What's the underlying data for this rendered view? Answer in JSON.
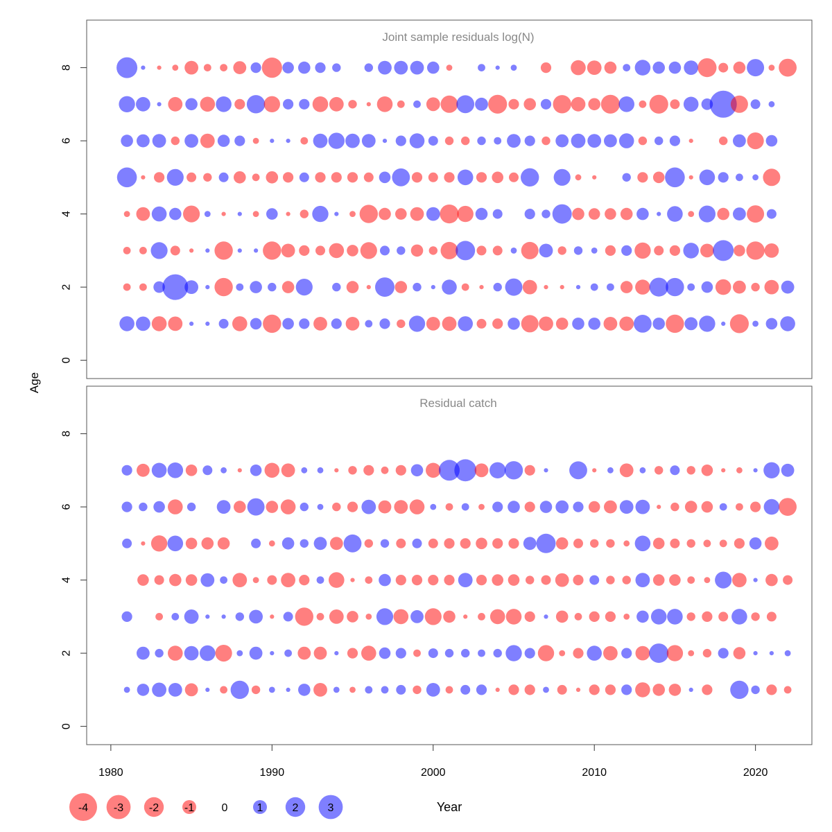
{
  "colors": {
    "negative": "#ff0000",
    "positive": "#0000ff",
    "bubble_opacity": 0.5,
    "frame": "#555555",
    "title_gray": "#888888"
  },
  "ylabel": "Age",
  "xlabel": "Year",
  "xticks": [
    1980,
    1990,
    2000,
    2010,
    2020
  ],
  "yticks": [
    0,
    2,
    4,
    6,
    8
  ],
  "legend": [
    {
      "value": -4,
      "label": "-4"
    },
    {
      "value": -3,
      "label": "-3"
    },
    {
      "value": -2,
      "label": "-2"
    },
    {
      "value": -1,
      "label": "-1"
    },
    {
      "value": 0,
      "label": "0"
    },
    {
      "value": 1,
      "label": "1"
    },
    {
      "value": 2,
      "label": "2"
    },
    {
      "value": 3,
      "label": "3"
    }
  ],
  "chart_data": [
    {
      "type": "scatter",
      "title": "Joint sample residuals log(N)",
      "xlabel": "Year",
      "ylabel": "Age",
      "xlim": [
        1978.5,
        2023.5
      ],
      "ylim": [
        -0.5,
        9.3
      ],
      "marker_scale": "bubble area proportional to |residual|; red = negative, blue = positive",
      "years": [
        1981,
        1982,
        1983,
        1984,
        1985,
        1986,
        1987,
        1988,
        1989,
        1990,
        1991,
        1992,
        1993,
        1994,
        1995,
        1996,
        1997,
        1998,
        1999,
        2000,
        2001,
        2002,
        2003,
        2004,
        2005,
        2006,
        2007,
        2008,
        2009,
        2010,
        2011,
        2012,
        2013,
        2014,
        2015,
        2016,
        2017,
        2018,
        2019,
        2020,
        2021,
        2022
      ],
      "ages": [
        1,
        2,
        3,
        4,
        5,
        6,
        7,
        8
      ],
      "residuals": {
        "1": [
          1.2,
          1.1,
          -1.2,
          -1.1,
          0.1,
          0.1,
          0.5,
          -1.2,
          0.7,
          -1.8,
          0.7,
          0.6,
          -1.0,
          0.6,
          -1.0,
          0.3,
          0.6,
          -0.4,
          1.4,
          -1.0,
          -1.1,
          1.2,
          -0.5,
          -0.6,
          0.8,
          -1.6,
          -1.1,
          -0.8,
          0.8,
          0.8,
          -1.0,
          -1.1,
          1.7,
          0.8,
          -1.8,
          0.9,
          1.4,
          0.1,
          -1.9,
          0.2,
          0.7,
          1.2
        ],
        "2": [
          -0.3,
          -0.3,
          0.7,
          3.5,
          1.0,
          0.1,
          -1.8,
          0.3,
          0.8,
          0.4,
          -0.8,
          1.5,
          0.0,
          0.4,
          -0.8,
          -0.1,
          2.0,
          -0.8,
          0.4,
          0.1,
          1.2,
          -0.3,
          -0.1,
          0.4,
          1.6,
          -1.1,
          -0.1,
          -0.1,
          0.1,
          0.3,
          0.3,
          -0.8,
          -1.2,
          1.9,
          1.8,
          0.3,
          0.7,
          -1.3,
          -0.9,
          -0.4,
          -1.1,
          0.9
        ],
        "3": [
          -0.3,
          -0.3,
          1.5,
          -0.5,
          -0.1,
          0.1,
          -1.8,
          0.1,
          0.1,
          -1.8,
          -1.0,
          -0.6,
          -0.5,
          -1.2,
          -0.7,
          -1.5,
          0.5,
          0.4,
          -0.8,
          -0.4,
          -1.6,
          2.0,
          -0.5,
          -0.5,
          0.2,
          -1.6,
          1.0,
          -0.4,
          0.4,
          0.2,
          -0.6,
          0.6,
          -1.4,
          -0.5,
          -0.6,
          1.3,
          -1.0,
          2.3,
          -0.7,
          -1.8,
          -1.1,
          0.0
        ],
        "4": [
          -0.2,
          -1.0,
          1.2,
          0.8,
          -1.5,
          0.2,
          -0.1,
          0.1,
          -0.2,
          0.7,
          -0.1,
          -0.4,
          1.4,
          0.1,
          -0.2,
          -1.8,
          -0.8,
          -0.7,
          -1.0,
          1.0,
          -1.9,
          -1.4,
          0.8,
          0.5,
          0.0,
          0.6,
          0.4,
          2.0,
          -0.8,
          -0.7,
          -0.7,
          -0.8,
          0.8,
          0.1,
          1.3,
          -0.2,
          1.5,
          -0.8,
          0.9,
          -1.6,
          0.5,
          0
        ],
        "5": [
          2.1,
          -0.1,
          -0.6,
          1.5,
          -0.5,
          -0.4,
          0.5,
          -0.8,
          -0.3,
          -0.8,
          -0.6,
          0.5,
          -0.6,
          -0.6,
          -0.6,
          -0.5,
          0.7,
          1.7,
          -0.6,
          -0.5,
          -0.6,
          1.3,
          -0.6,
          -0.7,
          -0.5,
          1.8,
          0.0,
          1.5,
          -0.2,
          -0.1,
          0.0,
          0.4,
          -0.6,
          -0.7,
          2.1,
          -0.1,
          1.3,
          0.6,
          0.3,
          0.2,
          -1.6,
          0
        ],
        "6": [
          0.8,
          0.9,
          1.0,
          -0.4,
          1.0,
          -1.1,
          0.8,
          0.6,
          -0.2,
          0.1,
          0.1,
          -0.3,
          1.1,
          1.4,
          1.1,
          1.0,
          0.1,
          0.6,
          1.2,
          0.5,
          -0.4,
          -0.4,
          0.4,
          0.3,
          1.0,
          0.6,
          -0.4,
          0.9,
          1.1,
          1.0,
          0.9,
          1.2,
          -0.4,
          0.4,
          0.6,
          -0.1,
          0.0,
          -0.4,
          0.9,
          -1.5,
          0.7,
          0
        ],
        "7": [
          1.4,
          1.1,
          0.1,
          -1.1,
          0.8,
          -1.2,
          1.3,
          -0.6,
          1.8,
          -1.4,
          0.6,
          0.6,
          -1.3,
          -1.1,
          -0.4,
          -0.1,
          -1.3,
          -0.3,
          0.3,
          -1.0,
          -1.6,
          1.7,
          0.9,
          -1.9,
          -0.6,
          -0.8,
          0.6,
          -1.8,
          -1.1,
          -0.8,
          -1.9,
          1.3,
          -0.3,
          -1.9,
          -0.5,
          1.2,
          0.7,
          3.9,
          -1.6,
          0.5,
          0.2,
          0
        ],
        "8": [
          2.3,
          0.1,
          -0.1,
          -0.2,
          -1.0,
          -0.3,
          -0.3,
          -0.9,
          0.6,
          -2.2,
          0.7,
          0.8,
          0.6,
          0.4,
          0.0,
          0.4,
          1.0,
          1.0,
          1.0,
          0.8,
          -0.2,
          0.0,
          0.3,
          0.1,
          0.2,
          0.0,
          -0.6,
          0.0,
          -1.2,
          -1.1,
          -0.8,
          0.3,
          1.3,
          0.8,
          0.8,
          1.1,
          -1.9,
          -0.5,
          -0.8,
          1.6,
          -0.2,
          -1.7
        ]
      }
    },
    {
      "type": "scatter",
      "title": "Residual catch",
      "xlabel": "Year",
      "ylabel": "Age",
      "xlim": [
        1978.5,
        2023.5
      ],
      "ylim": [
        -0.5,
        9.3
      ],
      "marker_scale": "bubble area proportional to |residual|; red = negative, blue = positive",
      "years": [
        1981,
        1982,
        1983,
        1984,
        1985,
        1986,
        1987,
        1988,
        1989,
        1990,
        1991,
        1992,
        1993,
        1994,
        1995,
        1996,
        1997,
        1998,
        1999,
        2000,
        2001,
        2002,
        2003,
        2004,
        2005,
        2006,
        2007,
        2008,
        2009,
        2010,
        2011,
        2012,
        2013,
        2014,
        2015,
        2016,
        2017,
        2018,
        2019,
        2020,
        2021,
        2022
      ],
      "ages": [
        1,
        2,
        3,
        4,
        5,
        6,
        7
      ],
      "residuals": {
        "1": [
          0.2,
          0.8,
          1.1,
          1.0,
          -0.9,
          0.1,
          -0.3,
          1.8,
          -0.4,
          0.2,
          0.1,
          0.8,
          -1.0,
          0.2,
          -0.2,
          0.3,
          0.3,
          0.5,
          -0.4,
          1.0,
          -0.3,
          0.5,
          0.6,
          -0.1,
          -0.6,
          -0.6,
          0.2,
          -0.5,
          -0.1,
          -0.6,
          -0.6,
          0.6,
          -1.2,
          -0.8,
          -0.8,
          0.1,
          -0.6,
          0.0,
          1.8,
          0.4,
          -0.6,
          -0.3
        ],
        "2": [
          0.0,
          0.9,
          0.4,
          -1.2,
          1.1,
          1.3,
          -1.5,
          0.2,
          0.9,
          0.1,
          0.3,
          -0.9,
          -0.9,
          0.1,
          -0.6,
          -1.2,
          0.7,
          0.6,
          -0.3,
          0.5,
          0.4,
          0.4,
          0.3,
          0.4,
          1.4,
          0.6,
          -1.4,
          -0.2,
          -0.6,
          1.2,
          -1.1,
          0.6,
          -1.1,
          2.0,
          -1.4,
          -0.2,
          -0.4,
          0.6,
          -0.8,
          0.1,
          0.1,
          0.2
        ],
        "3": [
          0.6,
          0.0,
          -0.3,
          0.3,
          1.1,
          0.1,
          0.1,
          0.4,
          1.0,
          -0.1,
          0.5,
          -1.8,
          -0.3,
          -1.1,
          -0.7,
          -0.2,
          1.5,
          -1.2,
          0.9,
          -1.5,
          -0.8,
          -0.1,
          -0.3,
          -1.2,
          -1.3,
          -0.6,
          0.1,
          -0.8,
          -0.3,
          -0.6,
          -0.6,
          -0.2,
          0.8,
          1.3,
          1.3,
          -0.4,
          -0.6,
          -0.5,
          1.3,
          -0.4,
          -0.5,
          0.0
        ],
        "4": [
          0.0,
          -0.7,
          -0.5,
          -0.8,
          -0.7,
          1.0,
          0.3,
          -1.1,
          -0.2,
          -0.5,
          -1.1,
          -0.6,
          0.3,
          -1.3,
          -0.1,
          -0.3,
          0.8,
          -0.6,
          -0.6,
          -0.6,
          -0.6,
          1.1,
          -0.6,
          -0.7,
          -0.7,
          -0.4,
          -0.5,
          -1.0,
          -0.6,
          0.5,
          -0.4,
          -0.4,
          1.1,
          -0.7,
          -0.7,
          -0.3,
          -0.2,
          1.5,
          -1.1,
          0.1,
          -0.8,
          -0.5
        ],
        "5": [
          0.5,
          -0.1,
          -1.4,
          1.3,
          -0.7,
          -0.8,
          -0.8,
          0.0,
          0.5,
          -0.2,
          0.8,
          0.4,
          0.9,
          -0.9,
          1.7,
          -0.4,
          0.4,
          -0.5,
          0.5,
          -0.5,
          -0.6,
          -0.6,
          -0.7,
          -0.6,
          -0.6,
          0.9,
          2.0,
          -0.8,
          -0.5,
          -0.4,
          -0.4,
          -0.2,
          1.3,
          -0.7,
          -0.5,
          -0.4,
          -0.3,
          -0.3,
          -0.6,
          0.8,
          -1.0,
          0
        ],
        "6": [
          0.6,
          0.4,
          0.7,
          -1.2,
          0.4,
          0.0,
          1.0,
          -0.8,
          1.6,
          -0.8,
          -1.2,
          0.4,
          0.2,
          -0.4,
          -0.6,
          1.1,
          -0.9,
          -1.0,
          -1.2,
          0.2,
          -0.3,
          0.3,
          -0.2,
          0.6,
          0.8,
          -0.6,
          0.8,
          0.9,
          0.6,
          -0.7,
          -0.9,
          1.0,
          1.1,
          -0.1,
          -0.4,
          -0.8,
          -0.7,
          0.3,
          -0.3,
          -0.6,
          1.3,
          -1.7
        ],
        "7": [
          0.6,
          -0.9,
          1.2,
          1.3,
          -0.7,
          0.5,
          0.2,
          -0.1,
          0.7,
          -1.2,
          -1.0,
          0.2,
          0.2,
          -0.1,
          -0.4,
          -0.6,
          -0.3,
          -0.6,
          0.8,
          -1.2,
          2.3,
          2.6,
          -1.0,
          1.4,
          1.8,
          -0.6,
          0.1,
          0.0,
          1.7,
          -0.1,
          0.2,
          -1.0,
          0.2,
          -0.4,
          0.5,
          -0.4,
          -0.7,
          -0.1,
          -0.2,
          0.1,
          1.4,
          0.9
        ]
      }
    }
  ]
}
